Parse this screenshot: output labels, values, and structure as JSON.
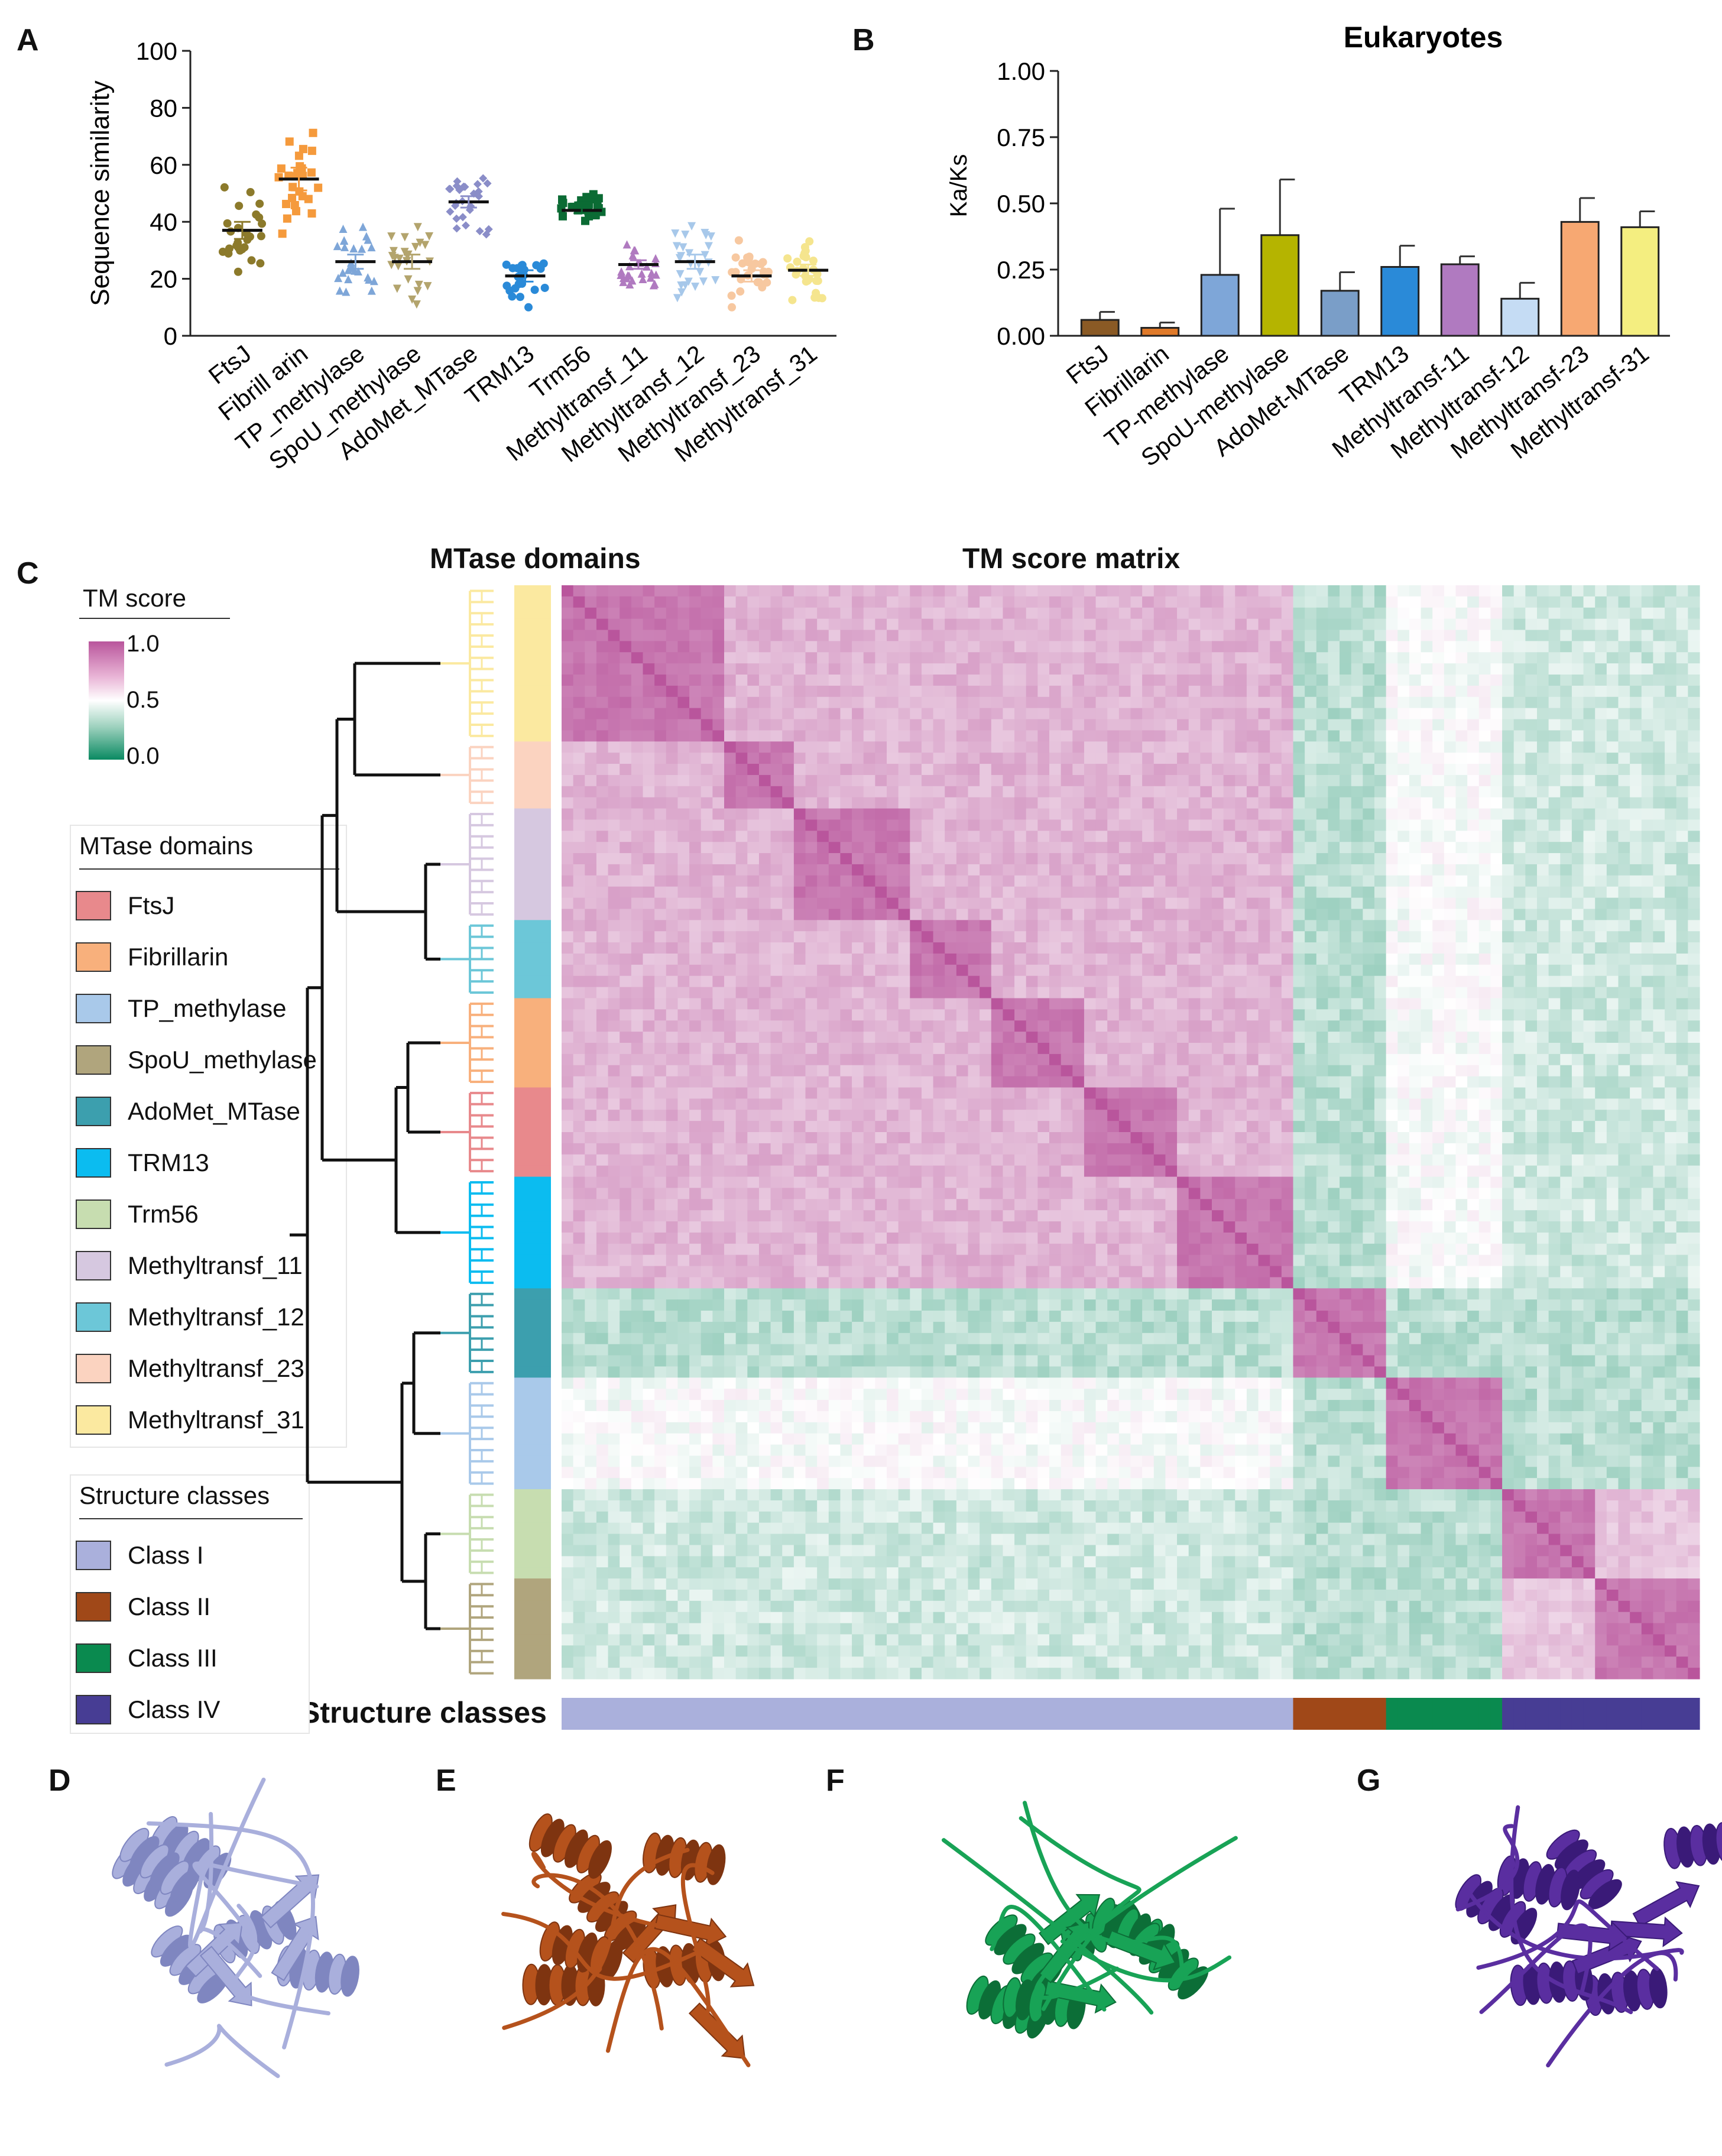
{
  "panels": {
    "a": "A",
    "b": "B",
    "c": "C",
    "d": "D",
    "e": "E",
    "f": "F",
    "g": "G"
  },
  "chart_data": [
    {
      "id": "A",
      "type": "scatter",
      "ylabel": "Sequence similarity",
      "ylim": [
        0,
        100
      ],
      "yticks": [
        "0",
        "20",
        "40",
        "60",
        "80",
        "100"
      ],
      "categories": [
        "FtsJ",
        "Fibrill arin",
        "TP_methylase",
        "SpoU_methylase",
        "AdoMet_MTase",
        "TRM13",
        "Trm56",
        "Methyltransf_11",
        "Methyltransf_12",
        "Methyltransf_23",
        "Methyltransf_31"
      ],
      "means": [
        37,
        55,
        26,
        26,
        47,
        21,
        44,
        25,
        26,
        21,
        23
      ],
      "sems": [
        3,
        4,
        2.5,
        2.5,
        2,
        2,
        1,
        1.5,
        2.5,
        2,
        2
      ],
      "colors": [
        "#8c7a2b",
        "#f59a3c",
        "#7ea6d8",
        "#b3a46d",
        "#8a8dc8",
        "#2a8ad8",
        "#0b6b34",
        "#b07ac0",
        "#a7c8ea",
        "#f7c8a0",
        "#f5e58e"
      ],
      "markers": [
        "circle",
        "square",
        "triangle",
        "triangle-down",
        "diamond",
        "circle",
        "square",
        "triangle",
        "triangle-down",
        "circle",
        "circle"
      ]
    },
    {
      "id": "B",
      "type": "bar",
      "title": "Eukaryotes",
      "ylabel": "Ka/Ks",
      "ylim": [
        0,
        1
      ],
      "yticks": [
        "0.00",
        "0.25",
        "0.50",
        "0.75",
        "1.00"
      ],
      "categories": [
        "FtsJ",
        "Fibrillarin",
        "TP-methylase",
        "SpoU-methylase",
        "AdoMet-MTase",
        "TRM13",
        "Methyltransf-11",
        "Methyltransf-12",
        "Methyltransf-23",
        "Methyltransf-31"
      ],
      "values": [
        0.06,
        0.03,
        0.23,
        0.38,
        0.17,
        0.26,
        0.27,
        0.14,
        0.43,
        0.41
      ],
      "errors": [
        0.03,
        0.02,
        0.25,
        0.21,
        0.07,
        0.08,
        0.03,
        0.06,
        0.09,
        0.06
      ],
      "colors": [
        "#8a5a25",
        "#e07a2a",
        "#7ea6d8",
        "#b5b400",
        "#7a9ec8",
        "#2a8ad8",
        "#b07ac0",
        "#c5dcf4",
        "#f7a872",
        "#f4ee80"
      ]
    },
    {
      "id": "C",
      "type": "heatmap",
      "title": "TM score matrix",
      "domain_title": "MTase domains",
      "class_title": "Structure classes",
      "colorbar_title": "TM score",
      "colorbar_ticks": [
        "1.0",
        "0.5",
        "0.0"
      ],
      "blocks": [
        {
          "domain": "Methyltransf_31",
          "class": "Class I",
          "size": 14
        },
        {
          "domain": "Methyltransf_23",
          "class": "Class I",
          "size": 6
        },
        {
          "domain": "Methyltransf_11",
          "class": "Class I",
          "size": 10
        },
        {
          "domain": "Methyltransf_12",
          "class": "Class I",
          "size": 7
        },
        {
          "domain": "Fibrillarin",
          "class": "Class I",
          "size": 8
        },
        {
          "domain": "FtsJ",
          "class": "Class I",
          "size": 8
        },
        {
          "domain": "TRM13",
          "class": "Class I",
          "size": 10
        },
        {
          "domain": "AdoMet_MTase",
          "class": "Class II",
          "size": 8
        },
        {
          "domain": "TP_methylase",
          "class": "Class III",
          "size": 10
        },
        {
          "domain": "Trm56",
          "class": "Class IV",
          "size": 8
        },
        {
          "domain": "SpoU_methylase",
          "class": "Class IV",
          "size": 9
        }
      ]
    }
  ],
  "legends": {
    "domains_title": "MTase domains",
    "domains": [
      {
        "label": "FtsJ",
        "color": "#e8898c"
      },
      {
        "label": "Fibrillarin",
        "color": "#f8b07c"
      },
      {
        "label": "TP_methylase",
        "color": "#a9c9ea"
      },
      {
        "label": "SpoU_methylase",
        "color": "#b0a57d"
      },
      {
        "label": "AdoMet_MTase",
        "color": "#3c9fae"
      },
      {
        "label": "TRM13",
        "color": "#0bbcf0"
      },
      {
        "label": "Trm56",
        "color": "#c7ddb0"
      },
      {
        "label": "Methyltransf_11",
        "color": "#d6c8e0"
      },
      {
        "label": "Methyltransf_12",
        "color": "#6cc7d8"
      },
      {
        "label": "Methyltransf_23",
        "color": "#fbd3c0"
      },
      {
        "label": "Methyltransf_31",
        "color": "#fbe9a0"
      }
    ],
    "classes_title": "Structure classes",
    "classes": [
      {
        "label": "Class I",
        "color": "#aab0dc"
      },
      {
        "label": "Class II",
        "color": "#a04818"
      },
      {
        "label": "Class III",
        "color": "#0a8a4f"
      },
      {
        "label": "Class IV",
        "color": "#473d94"
      }
    ]
  },
  "structures": [
    {
      "panel": "D",
      "color": "#a9afdc",
      "shade": "#7f86c0"
    },
    {
      "panel": "E",
      "color": "#b5521c",
      "shade": "#7e3410"
    },
    {
      "panel": "F",
      "color": "#18a356",
      "shade": "#0c6e37"
    },
    {
      "panel": "G",
      "color": "#5a2ea0",
      "shade": "#3a1a78"
    }
  ]
}
